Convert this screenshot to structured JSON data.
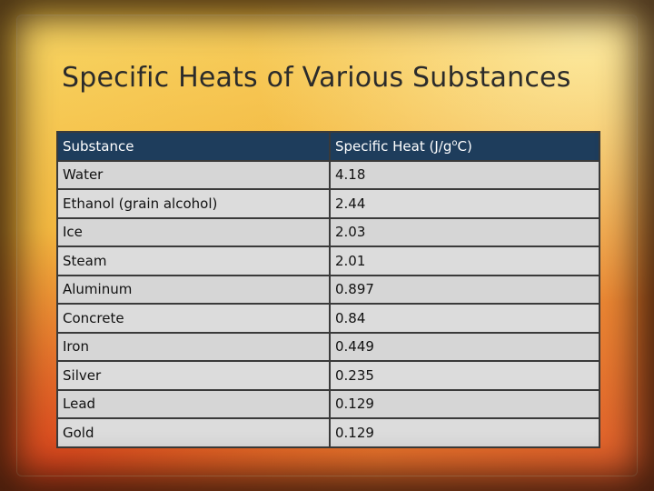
{
  "slide": {
    "title": "Specific Heats of Various Substances"
  },
  "table": {
    "headers": {
      "substance": "Substance",
      "specific_heat_prefix": "Specific Heat (J/g",
      "specific_heat_sup": "o",
      "specific_heat_suffix": "C)"
    },
    "rows": [
      {
        "substance": "Water",
        "specific_heat": "4.18"
      },
      {
        "substance": "Ethanol (grain alcohol)",
        "specific_heat": "2.44"
      },
      {
        "substance": "Ice",
        "specific_heat": "2.03"
      },
      {
        "substance": "Steam",
        "specific_heat": "2.01"
      },
      {
        "substance": "Aluminum",
        "specific_heat": "0.897"
      },
      {
        "substance": "Concrete",
        "specific_heat": "0.84"
      },
      {
        "substance": "Iron",
        "specific_heat": "0.449"
      },
      {
        "substance": "Silver",
        "specific_heat": "0.235"
      },
      {
        "substance": "Lead",
        "specific_heat": "0.129"
      },
      {
        "substance": "Gold",
        "specific_heat": "0.129"
      }
    ]
  },
  "colors": {
    "header_bg": "#1e3d5c",
    "cell_bg": "#dcdcdc",
    "title_text": "#2b2b2b"
  }
}
